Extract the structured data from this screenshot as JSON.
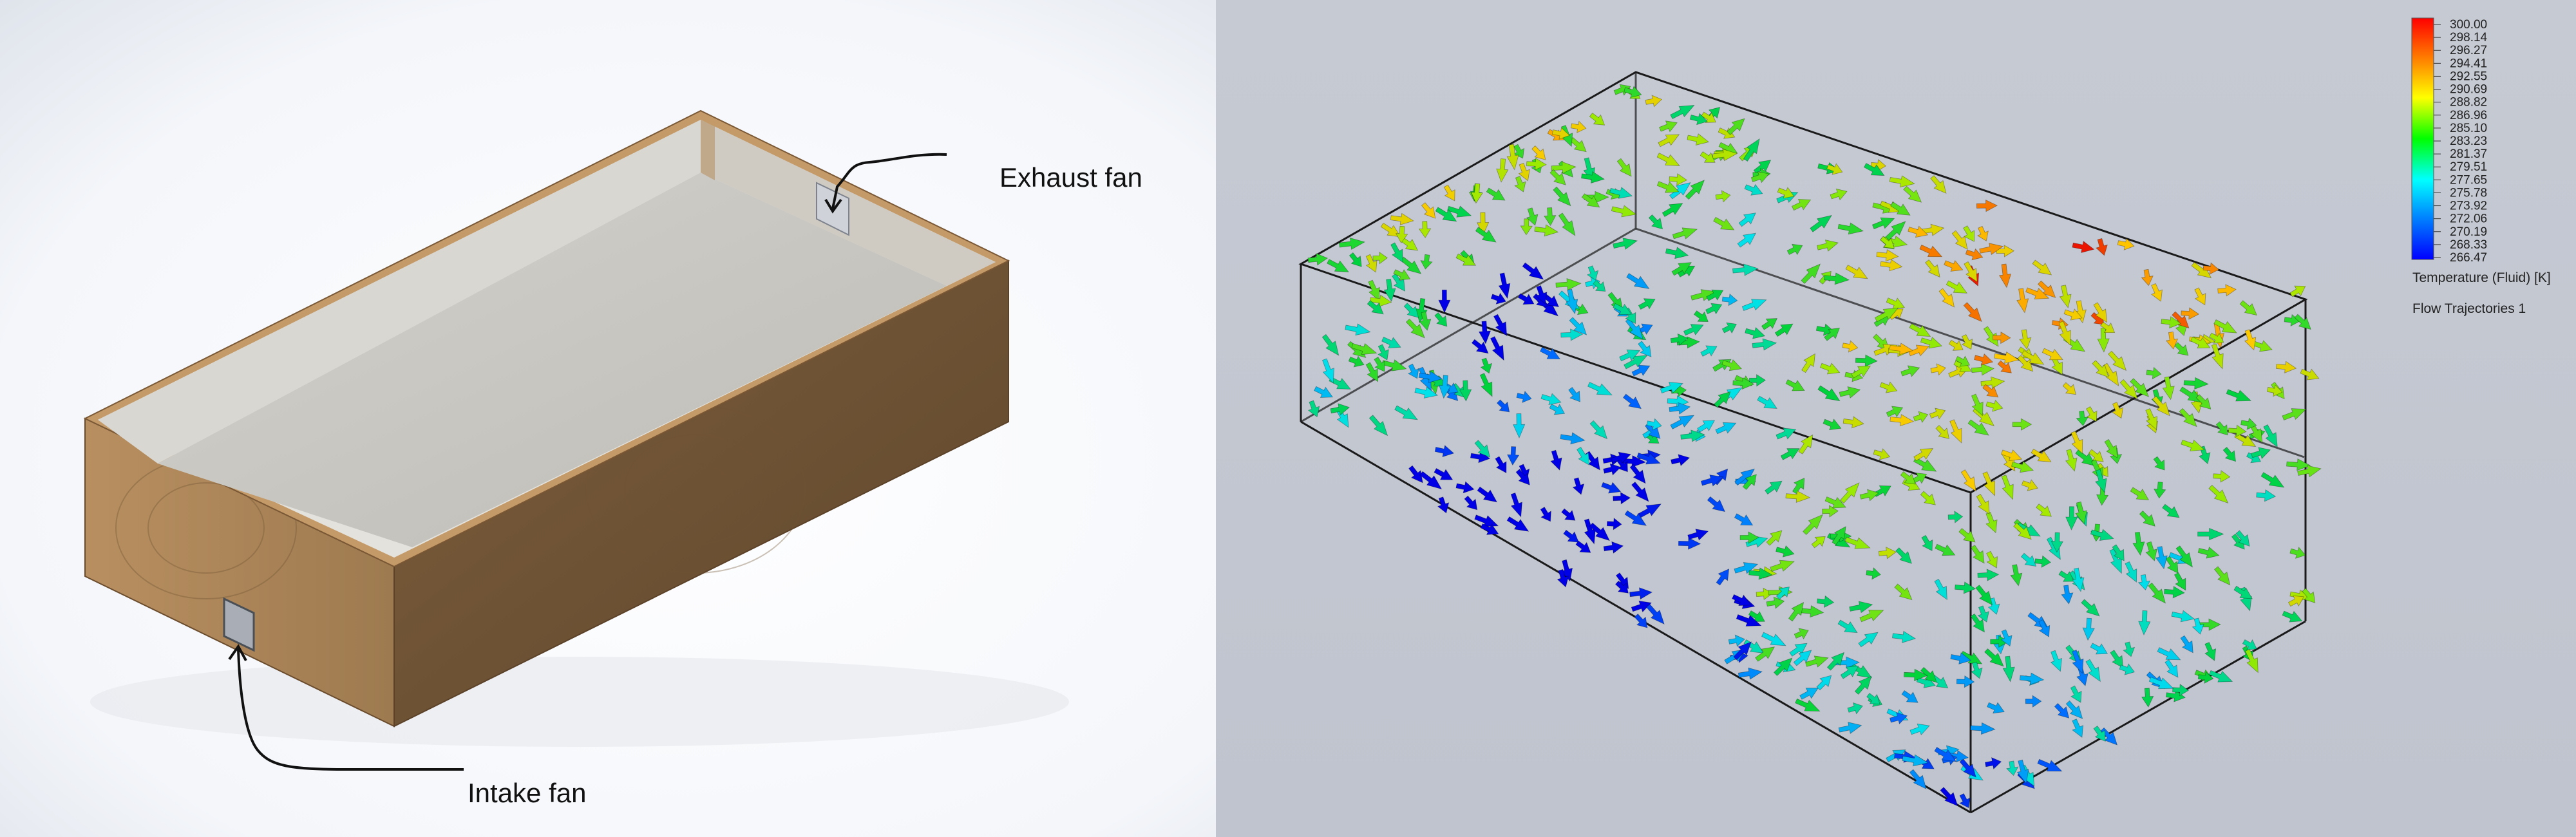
{
  "left_panel": {
    "labels": {
      "exhaust": "Exhaust fan",
      "intake": "Intake fan"
    }
  },
  "right_panel": {
    "legend": {
      "title": "Temperature (Fluid) [K]",
      "subtitle": "Flow Trajectories 1",
      "ticks": [
        "300.00",
        "298.14",
        "296.27",
        "294.41",
        "292.55",
        "290.69",
        "288.82",
        "286.96",
        "285.10",
        "283.23",
        "281.37",
        "279.51",
        "277.65",
        "275.78",
        "273.92",
        "272.06",
        "270.19",
        "268.33",
        "266.47"
      ],
      "min": 266.47,
      "max": 300.0
    }
  }
}
